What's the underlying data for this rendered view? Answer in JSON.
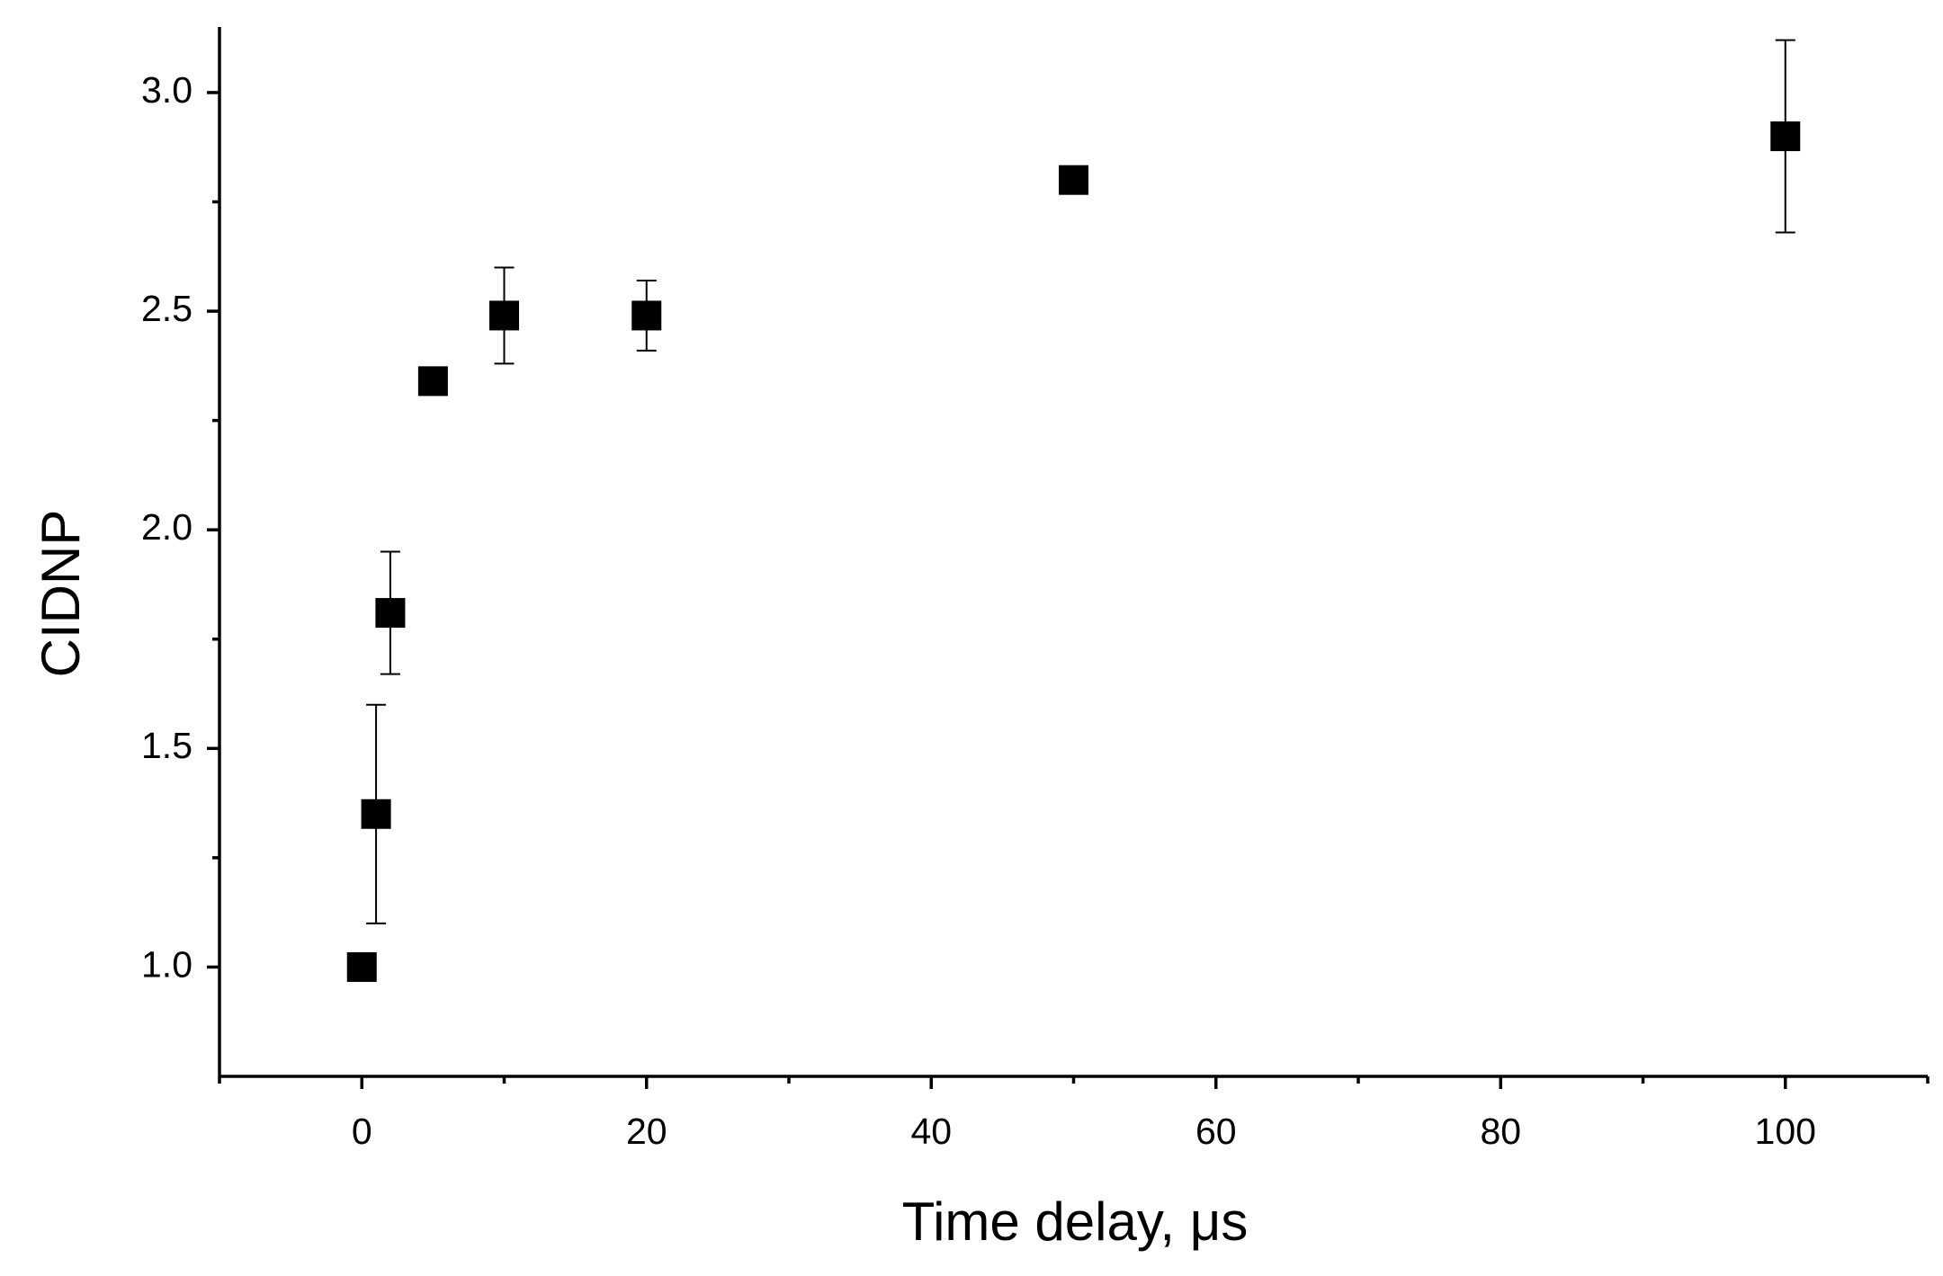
{
  "chart_data": {
    "type": "scatter",
    "x_label": "Time delay, μs",
    "y_label": "CIDNP",
    "x": [
      0,
      1,
      2,
      5,
      10,
      20,
      50,
      100
    ],
    "y": [
      1.0,
      1.35,
      1.81,
      2.34,
      2.49,
      2.49,
      2.8,
      2.9
    ],
    "errors": [
      null,
      0.25,
      0.14,
      null,
      0.11,
      0.08,
      null,
      0.22
    ],
    "color": "#000000",
    "xlim": [
      -10,
      110
    ],
    "xticks": [
      0,
      20,
      40,
      60,
      80,
      100
    ],
    "xminorticks": [
      -10,
      10,
      30,
      50,
      70,
      90,
      110
    ],
    "ylim": [
      0.75,
      3.15
    ],
    "yticks": [
      {
        "value": 1,
        "label": "1.0"
      },
      {
        "value": 1.5,
        "label": "1.5"
      },
      {
        "value": 2,
        "label": "2.0"
      },
      {
        "value": 2.5,
        "label": "2.5"
      },
      {
        "value": 3,
        "label": "3.0"
      }
    ],
    "yminorticks": [
      1.25,
      1.75,
      2.25,
      2.75
    ]
  }
}
